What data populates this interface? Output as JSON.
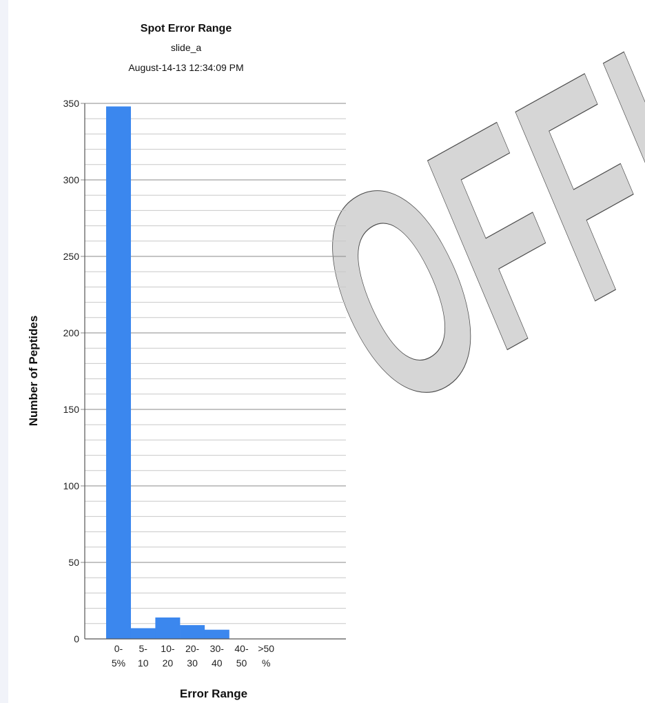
{
  "chart_data": {
    "type": "bar",
    "title": "Spot Error Range",
    "subtitles": [
      "slide_a",
      "August-14-13 12:34:09 PM"
    ],
    "xlabel": "Error Range",
    "ylabel": "Number of Peptides",
    "categories": [
      [
        "0-",
        "5%"
      ],
      [
        "5-",
        "10"
      ],
      [
        "10-",
        "20"
      ],
      [
        "20-",
        "30"
      ],
      [
        "30-",
        "40"
      ],
      [
        "40-",
        "50"
      ],
      [
        ">50",
        "%"
      ]
    ],
    "values": [
      348,
      7,
      14,
      9,
      6,
      0,
      0
    ],
    "ylim": [
      0,
      350
    ],
    "yticks": [
      0,
      50,
      100,
      150,
      200,
      250,
      300,
      350
    ],
    "minor_step": 10,
    "grid": true,
    "legend": "none",
    "bar_color": "#3b87ee"
  },
  "watermark": {
    "text": "OFFICIAL",
    "fill": "#d6d6d6",
    "stroke": "#4a4a4a"
  }
}
